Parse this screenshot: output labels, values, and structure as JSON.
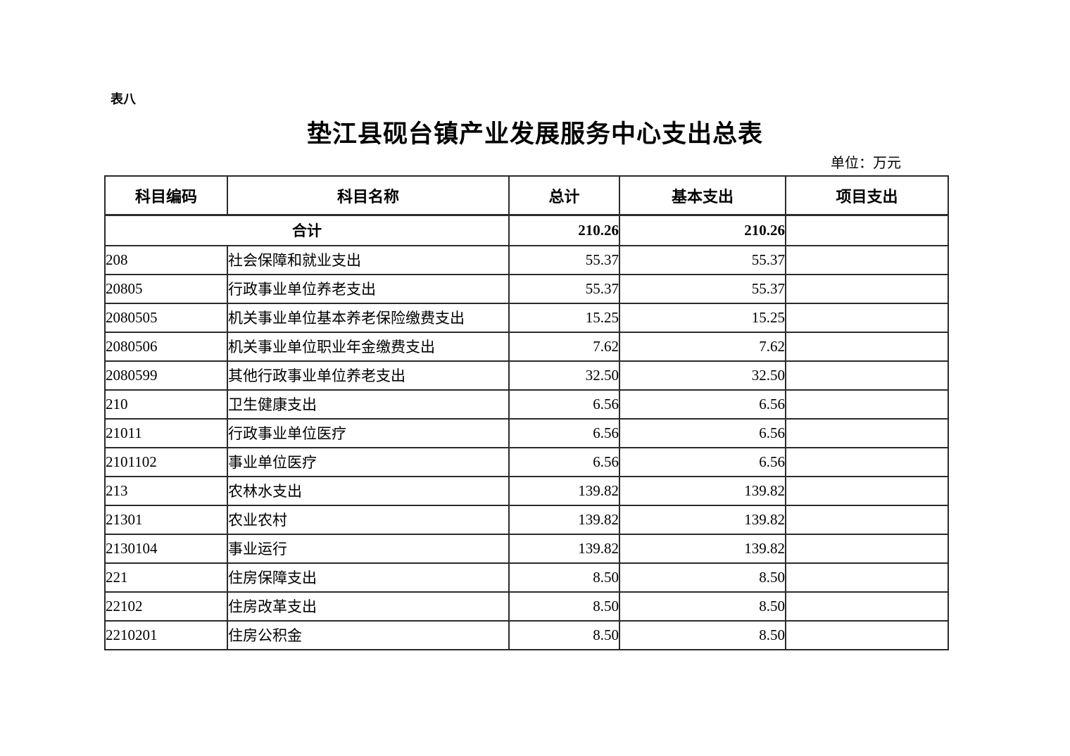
{
  "page_label": "表八",
  "title": "垫江县砚台镇产业发展服务中心支出总表",
  "unit_note": "单位：万元",
  "colors": {
    "background": "#ffffff",
    "text": "#000000",
    "border": "#2b2b2b"
  },
  "table": {
    "headers": [
      "科目编码",
      "科目名称",
      "总计",
      "基本支出",
      "项目支出"
    ],
    "total_row": {
      "label": "合计",
      "total": "210.26",
      "basic": "210.26",
      "project": ""
    },
    "rows": [
      {
        "code": "208",
        "name": "社会保障和就业支出",
        "total": "55.37",
        "basic": "55.37",
        "project": ""
      },
      {
        "code": "20805",
        "name": "行政事业单位养老支出",
        "total": "55.37",
        "basic": "55.37",
        "project": ""
      },
      {
        "code": "2080505",
        "name": "机关事业单位基本养老保险缴费支出",
        "total": "15.25",
        "basic": "15.25",
        "project": ""
      },
      {
        "code": "2080506",
        "name": "机关事业单位职业年金缴费支出",
        "total": "7.62",
        "basic": "7.62",
        "project": ""
      },
      {
        "code": "2080599",
        "name": "其他行政事业单位养老支出",
        "total": "32.50",
        "basic": "32.50",
        "project": ""
      },
      {
        "code": "210",
        "name": "卫生健康支出",
        "total": "6.56",
        "basic": "6.56",
        "project": ""
      },
      {
        "code": "21011",
        "name": "行政事业单位医疗",
        "total": "6.56",
        "basic": "6.56",
        "project": ""
      },
      {
        "code": "2101102",
        "name": "事业单位医疗",
        "total": "6.56",
        "basic": "6.56",
        "project": ""
      },
      {
        "code": "213",
        "name": "农林水支出",
        "total": "139.82",
        "basic": "139.82",
        "project": ""
      },
      {
        "code": "21301",
        "name": "农业农村",
        "total": "139.82",
        "basic": "139.82",
        "project": ""
      },
      {
        "code": "2130104",
        "name": "事业运行",
        "total": "139.82",
        "basic": "139.82",
        "project": ""
      },
      {
        "code": "221",
        "name": "住房保障支出",
        "total": "8.50",
        "basic": "8.50",
        "project": ""
      },
      {
        "code": "22102",
        "name": "住房改革支出",
        "total": "8.50",
        "basic": "8.50",
        "project": ""
      },
      {
        "code": "2210201",
        "name": "住房公积金",
        "total": "8.50",
        "basic": "8.50",
        "project": ""
      }
    ]
  }
}
